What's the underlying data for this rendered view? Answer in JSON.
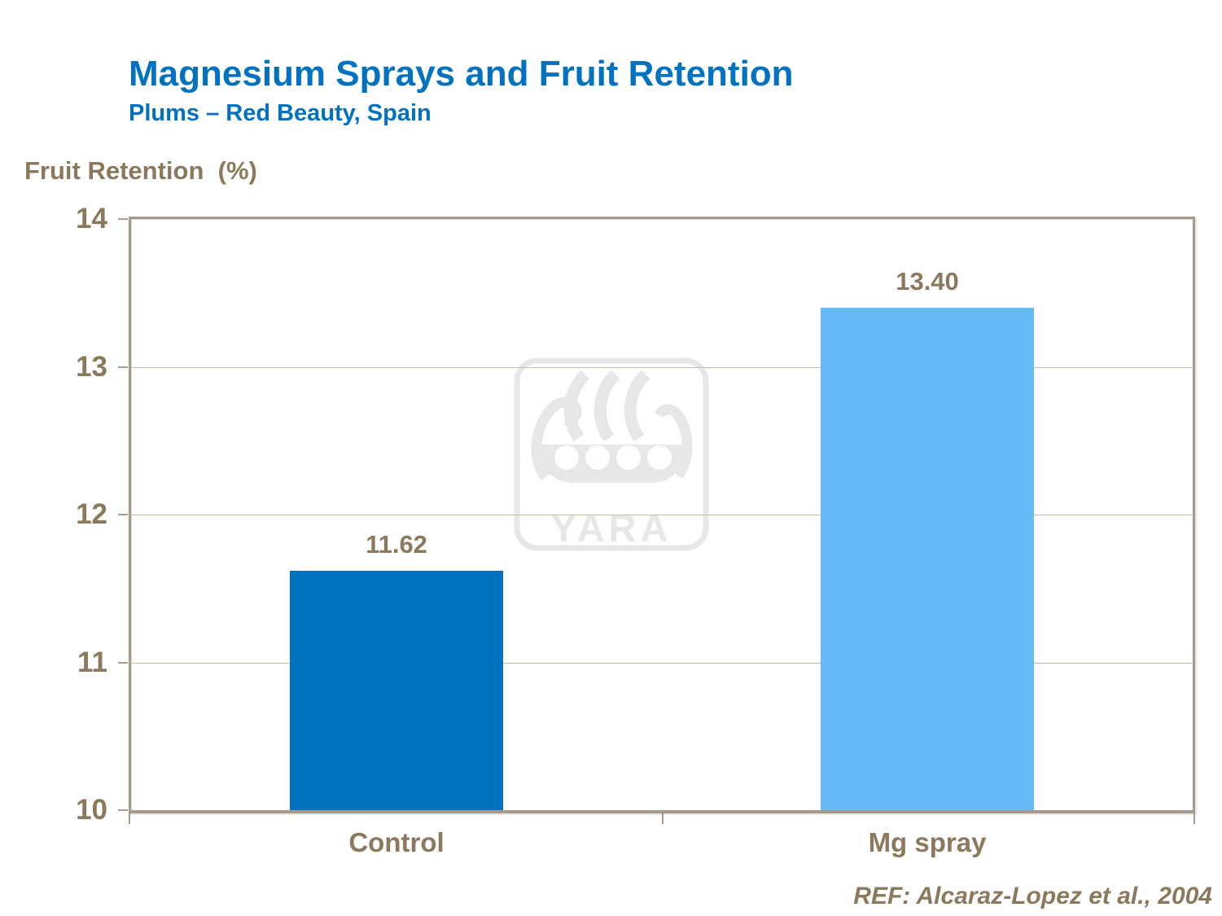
{
  "slide": {
    "title": "Magnesium Sprays and Fruit Retention",
    "subtitle": "Plums – Red Beauty, Spain",
    "y_axis_title": "Fruit Retention  (%)",
    "reference": "REF: Alcaraz-Lopez et al., 2004",
    "watermark_text": "YARA"
  },
  "colors": {
    "title_blue": "#0072C0",
    "text_brown": "#8A795C",
    "axis_line": "#A89B8D",
    "gridline": "#C6BAAB",
    "watermark_gray": "#E7E7E7",
    "control_bar": "#0072C0",
    "mg_spray_bar": "#66BBF7"
  },
  "chart_data": {
    "type": "bar",
    "title": "Magnesium Sprays and Fruit Retention",
    "subtitle": "Plums – Red Beauty, Spain",
    "ylabel": "Fruit Retention (%)",
    "xlabel": "",
    "categories": [
      "Control",
      "Mg spray"
    ],
    "values": [
      11.62,
      13.4
    ],
    "value_labels": [
      "11.62",
      "13.40"
    ],
    "series_colors": [
      "#0072C0",
      "#66BBF7"
    ],
    "ylim": [
      10,
      14
    ],
    "yticks": [
      10,
      11,
      12,
      13,
      14
    ],
    "grid": true,
    "legend_position": "none",
    "annotation": "REF: Alcaraz-Lopez et al., 2004"
  }
}
